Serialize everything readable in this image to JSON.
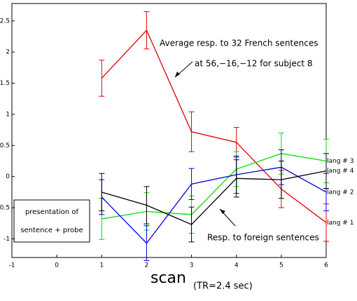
{
  "chart_data": {
    "type": "line",
    "x": [
      1,
      2,
      3,
      4,
      5,
      6
    ],
    "series": [
      {
        "name": "lang # 1",
        "color": "#e00000",
        "values": [
          1.58,
          2.35,
          0.72,
          0.55,
          -0.2,
          -0.74
        ],
        "errors": [
          0.29,
          0.3,
          0.32,
          0.24,
          0.3,
          0.3
        ]
      },
      {
        "name": "lang # 3",
        "color": "#00e000",
        "label_color": "#e8e800",
        "values": [
          -0.68,
          -0.56,
          -0.61,
          0.12,
          0.37,
          0.25
        ],
        "errors": [
          0.33,
          0.3,
          0.3,
          0.28,
          0.33,
          0.35
        ]
      },
      {
        "name": "lang # 2",
        "color": "#0000e0",
        "values": [
          -0.33,
          -1.07,
          -0.12,
          0.03,
          0.15,
          -0.25
        ],
        "errors": [
          0.28,
          0.28,
          0.25,
          0.3,
          0.28,
          0.3
        ]
      },
      {
        "name": "lang # 4",
        "color": "#000000",
        "values": [
          -0.25,
          -0.46,
          -0.77,
          -0.03,
          -0.05,
          0.09
        ],
        "errors": [
          0.3,
          0.3,
          0.28,
          0.3,
          0.3,
          0.28
        ]
      }
    ],
    "xlim": [
      -1,
      6
    ],
    "xticks": [
      -1,
      0,
      1,
      2,
      3,
      4,
      5,
      6
    ],
    "ylim": [
      -1.3,
      2.78
    ],
    "yticks": [
      -1,
      -0.5,
      0,
      0.5,
      1,
      1.5,
      2,
      2.5
    ],
    "xlabel": "scan",
    "xlabel_note": "(TR=2.4 sec)",
    "annotations": [
      "Average resp. to 32 French sentences",
      "at 56,−16,−12 for subject 8",
      "Resp. to foreign sentences"
    ],
    "box_lines": [
      "presentation of",
      "sentence + probe"
    ]
  }
}
